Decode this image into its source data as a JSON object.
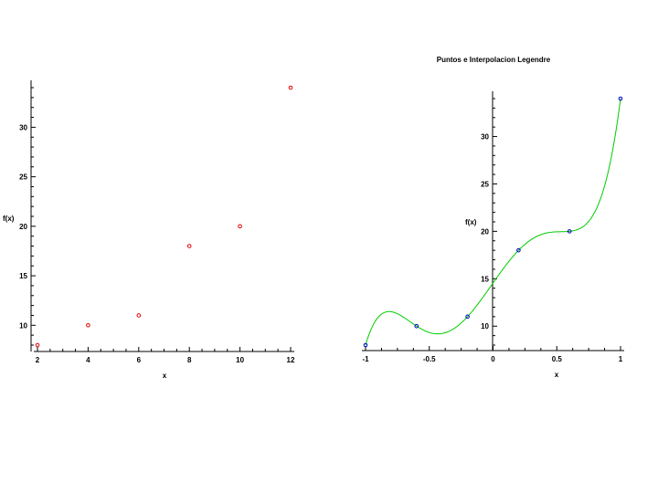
{
  "chart_data": [
    {
      "type": "scatter",
      "title": "",
      "xlabel": "x",
      "ylabel": "f(x)",
      "xlim": [
        2,
        12
      ],
      "ylim": [
        8,
        34
      ],
      "xticks": [
        2,
        4,
        6,
        8,
        10,
        12
      ],
      "yticks": [
        10,
        15,
        20,
        25,
        30
      ],
      "grid": false,
      "series": [
        {
          "x": [
            2,
            4,
            6,
            8,
            10,
            12
          ],
          "y": [
            8,
            10,
            11,
            18,
            20,
            34
          ],
          "color": "#e00000",
          "marker": "circle"
        }
      ]
    },
    {
      "type": "line",
      "title": "Puntos e Interpolacion Legendre",
      "xlabel": "x",
      "ylabel": "f(x)",
      "xlim": [
        -1,
        1
      ],
      "ylim": [
        8,
        34
      ],
      "xticks": [
        -1,
        -0.5,
        0,
        0.5,
        1
      ],
      "yticks": [
        10,
        15,
        20,
        25,
        30
      ],
      "grid": false,
      "series": [
        {
          "x": [
            -1,
            -0.6,
            -0.2,
            0.2,
            0.6,
            1
          ],
          "y": [
            8,
            10,
            11,
            18,
            20,
            34
          ],
          "color": "#0000cc",
          "marker": "circle"
        },
        {
          "curve": "interpolating-polynomial",
          "color": "#00cc00"
        }
      ]
    }
  ]
}
